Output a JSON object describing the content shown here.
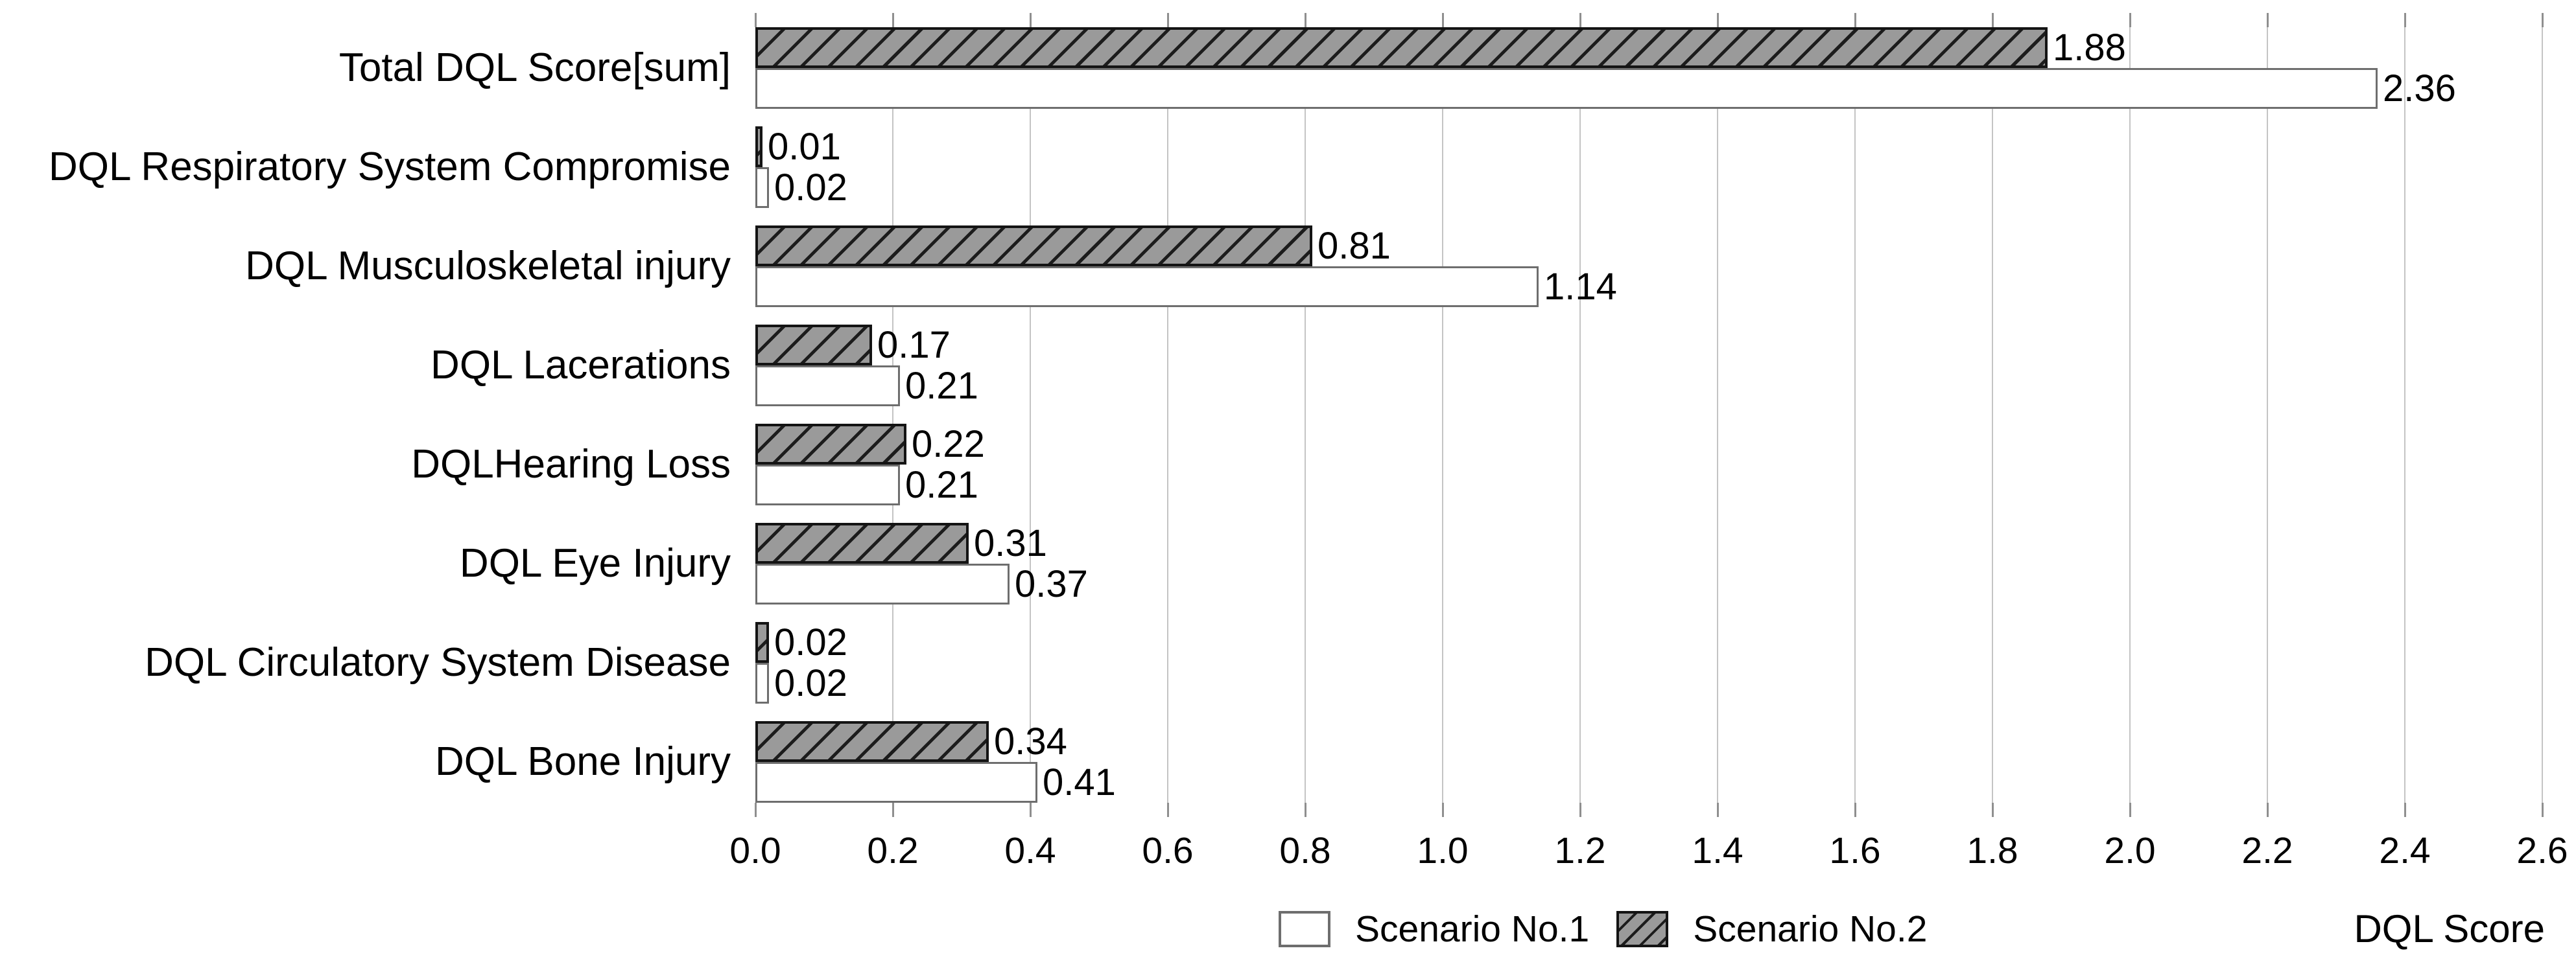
{
  "chart_data": {
    "type": "bar",
    "orientation": "horizontal",
    "categories": [
      "Total DQL Score[sum]",
      "DQL Respiratory System Compromise",
      "DQL Musculoskeletal injury",
      "DQL Lacerations",
      "DQLHearing Loss",
      "DQL Eye Injury",
      "DQL Circulatory System Disease",
      "DQL Bone Injury"
    ],
    "series": [
      {
        "name": "Scenario No.1",
        "style": "white",
        "values": [
          2.36,
          0.02,
          1.14,
          0.21,
          0.21,
          0.37,
          0.02,
          0.41
        ],
        "value_labels": [
          "2.36",
          "0.02",
          "1.14",
          "0.21",
          "0.21",
          "0.37",
          "0.02",
          "0.41"
        ]
      },
      {
        "name": "Scenario No.2",
        "style": "hatched",
        "values": [
          1.88,
          0.01,
          0.81,
          0.17,
          0.22,
          0.31,
          0.02,
          0.34
        ],
        "value_labels": [
          "1.88",
          "0.01",
          "0.81",
          "0.17",
          "0.22",
          "0.31",
          "0.02",
          "0.34"
        ]
      }
    ],
    "xlabel": "DQL Score",
    "xlim": [
      0,
      2.6
    ],
    "xtick_step": 0.2,
    "xticks": [
      "0.0",
      "0.2",
      "0.4",
      "0.6",
      "0.8",
      "1.0",
      "1.2",
      "1.4",
      "1.6",
      "1.8",
      "2.0",
      "2.2",
      "2.4",
      "2.6"
    ],
    "grid": "vertical",
    "legend_position": "bottom-center",
    "bar_order_in_group_top_to_bottom": [
      "Scenario No.2",
      "Scenario No.1"
    ],
    "colors": {
      "bar_white_fill": "#ffffff",
      "bar_white_border": "#6e6e6e",
      "bar_hatch_fill": "#9a9a9a",
      "bar_hatch_line": "#1c1c1c",
      "bar_hatch_border": "#141414",
      "gridline": "#c4c4c4",
      "tick": "#8f8f8f",
      "text": "#000000"
    }
  }
}
